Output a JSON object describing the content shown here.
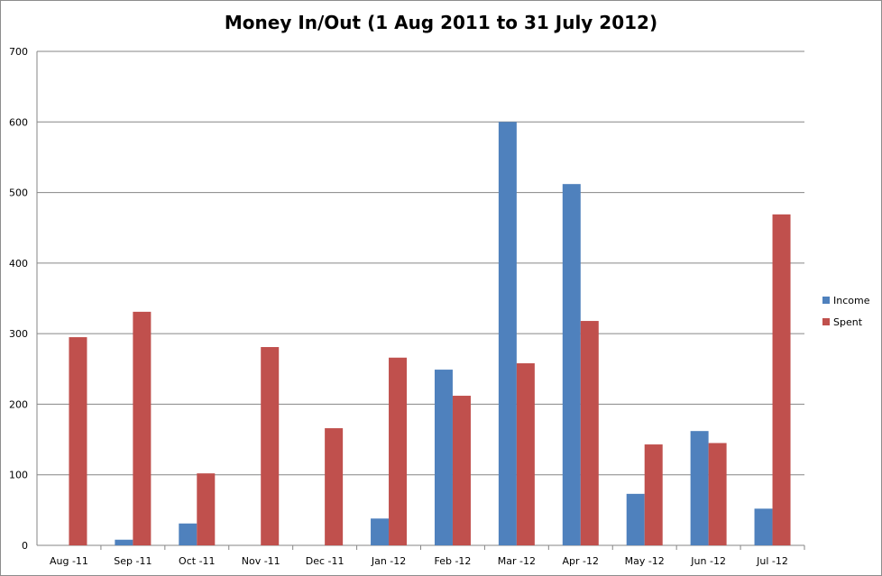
{
  "chart_data": {
    "type": "bar",
    "title": "Money In/Out (1 Aug 2011 to 31 July 2012)",
    "xlabel": "",
    "ylabel": "",
    "ylim": [
      0,
      700
    ],
    "yticks": [
      "0",
      "100",
      "200",
      "300",
      "400",
      "500",
      "600",
      "700"
    ],
    "grid": true,
    "legend_position": "right",
    "categories": [
      "Aug -11",
      "Sep -11",
      "Oct -11",
      "Nov -11",
      "Dec -11",
      "Jan -12",
      "Feb -12",
      "Mar -12",
      "Apr -12",
      "May -12",
      "Jun -12",
      "Jul -12"
    ],
    "series": [
      {
        "name": "Income",
        "color": "#4f81bd",
        "values": [
          0,
          8,
          31,
          0,
          0,
          38,
          249,
          600,
          512,
          73,
          162,
          52
        ]
      },
      {
        "name": "Spent",
        "color": "#c0504d",
        "values": [
          295,
          331,
          102,
          281,
          166,
          266,
          212,
          258,
          318,
          143,
          145,
          469
        ]
      }
    ]
  }
}
